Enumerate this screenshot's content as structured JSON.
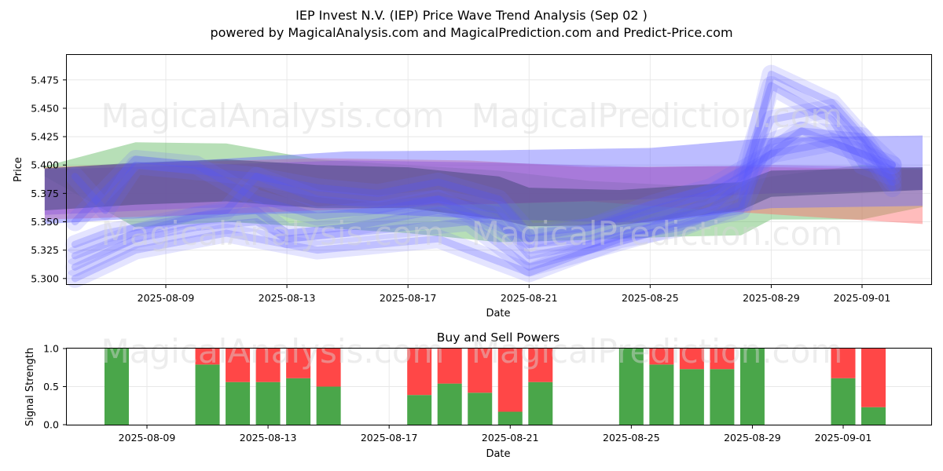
{
  "title_line1": "IEP Invest N.V. (IEP) Price Wave Trend Analysis (Sep 02 )",
  "title_line2": "powered by MagicalAnalysis.com and MagicalPrediction.com and Predict-Price.com",
  "watermarks": [
    "MagicalAnalysis.com",
    "MagicalPrediction.com"
  ],
  "colors": {
    "buy": "#4aa64a",
    "sell": "#ff4747",
    "blue_band": "#6a6aff",
    "green_band": "#5fb85f",
    "red_band": "#ff6b6b",
    "purple_band": "#8a4fd9"
  },
  "chart_data": [
    {
      "type": "area",
      "xlabel": "Date",
      "ylabel": "Price",
      "x_ticks": [
        "2025-08-09",
        "2025-08-13",
        "2025-08-17",
        "2025-08-21",
        "2025-08-25",
        "2025-08-29",
        "2025-09-01"
      ],
      "y_ticks": [
        5.3,
        5.325,
        5.35,
        5.375,
        5.4,
        5.425,
        5.45,
        5.475
      ],
      "xlim": [
        "2025-08-05",
        "2025-09-03"
      ],
      "ylim": [
        5.295,
        5.497
      ],
      "grid": true,
      "bands": [
        {
          "color": "green",
          "dates": [
            "2025-08-05",
            "2025-08-08",
            "2025-08-11",
            "2025-08-14",
            "2025-08-17",
            "2025-08-20",
            "2025-08-23",
            "2025-08-26",
            "2025-08-28",
            "2025-08-29",
            "2025-09-01",
            "2025-09-03"
          ],
          "upper": [
            5.399,
            5.42,
            5.419,
            5.405,
            5.4,
            5.395,
            5.386,
            5.382,
            5.384,
            5.39,
            5.4,
            5.397
          ],
          "lower": [
            5.39,
            5.345,
            5.35,
            5.345,
            5.34,
            5.332,
            5.334,
            5.337,
            5.338,
            5.352,
            5.352,
            5.363
          ]
        },
        {
          "color": "red",
          "dates": [
            "2025-08-05",
            "2025-08-09",
            "2025-08-14",
            "2025-08-19",
            "2025-08-23",
            "2025-08-27",
            "2025-09-03"
          ],
          "upper": [
            5.398,
            5.402,
            5.406,
            5.404,
            5.398,
            5.399,
            5.396
          ],
          "lower": [
            5.352,
            5.355,
            5.36,
            5.365,
            5.368,
            5.36,
            5.348
          ]
        },
        {
          "color": "blue",
          "dates": [
            "2025-08-05",
            "2025-08-10",
            "2025-08-15",
            "2025-08-20",
            "2025-08-25",
            "2025-08-29",
            "2025-09-03"
          ],
          "upper": [
            5.397,
            5.404,
            5.412,
            5.413,
            5.415,
            5.424,
            5.426
          ],
          "lower": [
            5.348,
            5.356,
            5.358,
            5.352,
            5.349,
            5.362,
            5.364
          ]
        },
        {
          "color": "purple",
          "dates": [
            "2025-08-05",
            "2025-08-10",
            "2025-08-15",
            "2025-08-20",
            "2025-08-25",
            "2025-08-29",
            "2025-09-03"
          ],
          "upper": [
            5.396,
            5.4,
            5.404,
            5.402,
            5.398,
            5.4,
            5.398
          ],
          "lower": [
            5.356,
            5.362,
            5.364,
            5.366,
            5.37,
            5.375,
            5.378
          ]
        },
        {
          "color": "dark",
          "dates": [
            "2025-08-05",
            "2025-08-08",
            "2025-08-11",
            "2025-08-14",
            "2025-08-17",
            "2025-08-20",
            "2025-08-21",
            "2025-08-24",
            "2025-08-28",
            "2025-08-29",
            "2025-09-03"
          ],
          "upper": [
            5.397,
            5.402,
            5.405,
            5.4,
            5.398,
            5.39,
            5.38,
            5.378,
            5.385,
            5.395,
            5.398
          ],
          "lower": [
            5.36,
            5.365,
            5.368,
            5.362,
            5.362,
            5.352,
            5.346,
            5.347,
            5.36,
            5.372,
            5.378
          ]
        }
      ],
      "waves": [
        {
          "dates": [
            "2025-08-06",
            "2025-08-07",
            "2025-08-08",
            "2025-08-10",
            "2025-08-12",
            "2025-08-13",
            "2025-08-15",
            "2025-08-18",
            "2025-08-19",
            "2025-08-20",
            "2025-08-21",
            "2025-08-23",
            "2025-08-25",
            "2025-08-27",
            "2025-08-28",
            "2025-08-29",
            "2025-08-31",
            "2025-09-01",
            "2025-09-02"
          ],
          "values": [
            5.32,
            5.33,
            5.34,
            5.355,
            5.36,
            5.34,
            5.345,
            5.36,
            5.355,
            5.35,
            5.32,
            5.33,
            5.345,
            5.37,
            5.38,
            5.44,
            5.45,
            5.42,
            5.38
          ]
        },
        {
          "dates": [
            "2025-08-06",
            "2025-08-07",
            "2025-08-09",
            "2025-08-11",
            "2025-08-12",
            "2025-08-14",
            "2025-08-16",
            "2025-08-18",
            "2025-08-20",
            "2025-08-21",
            "2025-08-23",
            "2025-08-25",
            "2025-08-27",
            "2025-08-28",
            "2025-08-29",
            "2025-08-31",
            "2025-09-01",
            "2025-09-02"
          ],
          "values": [
            5.33,
            5.34,
            5.35,
            5.36,
            5.39,
            5.37,
            5.365,
            5.37,
            5.36,
            5.33,
            5.335,
            5.35,
            5.36,
            5.385,
            5.47,
            5.44,
            5.4,
            5.39
          ]
        },
        {
          "dates": [
            "2025-08-06",
            "2025-08-08",
            "2025-08-10",
            "2025-08-12",
            "2025-08-13",
            "2025-08-15",
            "2025-08-17",
            "2025-08-19",
            "2025-08-20",
            "2025-08-21",
            "2025-08-23",
            "2025-08-25",
            "2025-08-27",
            "2025-08-28",
            "2025-08-29",
            "2025-08-30",
            "2025-09-01",
            "2025-09-02"
          ],
          "values": [
            5.31,
            5.335,
            5.345,
            5.35,
            5.335,
            5.34,
            5.345,
            5.35,
            5.33,
            5.31,
            5.325,
            5.34,
            5.355,
            5.36,
            5.42,
            5.43,
            5.41,
            5.395
          ]
        },
        {
          "dates": [
            "2025-08-06",
            "2025-08-07",
            "2025-08-08",
            "2025-08-10",
            "2025-08-12",
            "2025-08-14",
            "2025-08-16",
            "2025-08-18",
            "2025-08-20",
            "2025-08-21",
            "2025-08-23",
            "2025-08-25",
            "2025-08-27",
            "2025-08-29",
            "2025-08-31",
            "2025-09-02"
          ],
          "values": [
            5.39,
            5.36,
            5.4,
            5.395,
            5.39,
            5.38,
            5.375,
            5.385,
            5.37,
            5.34,
            5.345,
            5.365,
            5.38,
            5.41,
            5.42,
            5.4
          ]
        },
        {
          "dates": [
            "2025-08-06",
            "2025-08-08",
            "2025-08-09",
            "2025-08-11",
            "2025-08-13",
            "2025-08-14",
            "2025-08-16",
            "2025-08-18",
            "2025-08-20",
            "2025-08-21",
            "2025-08-22",
            "2025-08-24",
            "2025-08-26",
            "2025-08-28",
            "2025-08-29",
            "2025-08-31",
            "2025-09-01",
            "2025-09-02"
          ],
          "values": [
            5.3,
            5.325,
            5.33,
            5.34,
            5.33,
            5.325,
            5.33,
            5.335,
            5.315,
            5.305,
            5.315,
            5.335,
            5.345,
            5.365,
            5.48,
            5.455,
            5.425,
            5.385
          ]
        },
        {
          "dates": [
            "2025-08-06",
            "2025-08-08",
            "2025-08-10",
            "2025-08-12",
            "2025-08-14",
            "2025-08-16",
            "2025-08-18",
            "2025-08-20",
            "2025-08-21",
            "2025-08-23",
            "2025-08-25",
            "2025-08-27",
            "2025-08-28",
            "2025-08-30",
            "2025-09-01",
            "2025-09-02"
          ],
          "values": [
            5.35,
            5.405,
            5.4,
            5.37,
            5.355,
            5.36,
            5.37,
            5.345,
            5.335,
            5.345,
            5.36,
            5.375,
            5.39,
            5.43,
            5.425,
            5.4
          ]
        }
      ]
    },
    {
      "type": "bar",
      "title": "Buy and Sell Powers",
      "xlabel": "Date",
      "ylabel": "Signal Strength",
      "x_ticks": [
        "2025-08-09",
        "2025-08-13",
        "2025-08-17",
        "2025-08-21",
        "2025-08-25",
        "2025-08-29",
        "2025-09-01"
      ],
      "y_ticks": [
        "0.0",
        "0.5",
        "1.0"
      ],
      "ylim": [
        0,
        1
      ],
      "grid": true,
      "series": [
        {
          "name": "buy",
          "color": "#4aa64a"
        },
        {
          "name": "sell",
          "color": "#ff4747"
        }
      ],
      "bars": [
        {
          "date": "2025-08-08",
          "buy": 1.0
        },
        {
          "date": "2025-08-11",
          "buy": 0.79
        },
        {
          "date": "2025-08-12",
          "buy": 0.56
        },
        {
          "date": "2025-08-13",
          "buy": 0.56
        },
        {
          "date": "2025-08-14",
          "buy": 0.61
        },
        {
          "date": "2025-08-15",
          "buy": 0.5
        },
        {
          "date": "2025-08-18",
          "buy": 0.39
        },
        {
          "date": "2025-08-19",
          "buy": 0.54
        },
        {
          "date": "2025-08-20",
          "buy": 0.42
        },
        {
          "date": "2025-08-21",
          "buy": 0.17
        },
        {
          "date": "2025-08-22",
          "buy": 0.56
        },
        {
          "date": "2025-08-25",
          "buy": 1.0
        },
        {
          "date": "2025-08-26",
          "buy": 0.79
        },
        {
          "date": "2025-08-27",
          "buy": 0.73
        },
        {
          "date": "2025-08-28",
          "buy": 0.73
        },
        {
          "date": "2025-08-29",
          "buy": 1.0
        },
        {
          "date": "2025-09-01",
          "buy": 0.61
        },
        {
          "date": "2025-09-02",
          "buy": 0.23
        }
      ]
    }
  ]
}
